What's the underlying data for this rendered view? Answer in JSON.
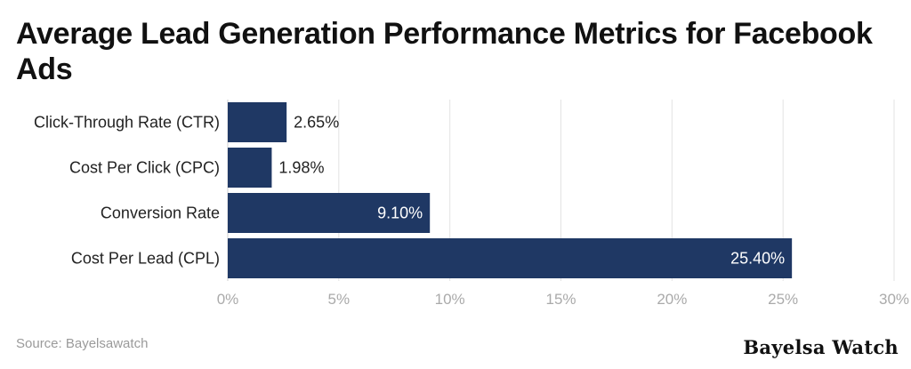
{
  "title": "Average Lead Generation Performance Metrics for Facebook Ads",
  "source": "Source: Bayelsawatch",
  "brand": "Bayelsa Watch",
  "colors": {
    "bar": "#1f3864",
    "grid": "#e3e3e3",
    "label_dark": "#222222",
    "label_light": "#ffffff",
    "tick": "#aaaaaa"
  },
  "chart_data": {
    "type": "bar",
    "orientation": "horizontal",
    "categories": [
      "Click-Through Rate (CTR)",
      "Cost Per Click (CPC)",
      "Conversion Rate",
      "Cost Per Lead (CPL)"
    ],
    "values": [
      2.65,
      1.98,
      9.1,
      25.4
    ],
    "value_labels": [
      "2.65%",
      "1.98%",
      "9.10%",
      "25.40%"
    ],
    "xlim": [
      0,
      30
    ],
    "xticks": [
      0,
      5,
      10,
      15,
      20,
      25,
      30
    ],
    "xtick_labels": [
      "0%",
      "5%",
      "10%",
      "15%",
      "20%",
      "25%",
      "30%"
    ],
    "grid": true,
    "legend": "none"
  }
}
